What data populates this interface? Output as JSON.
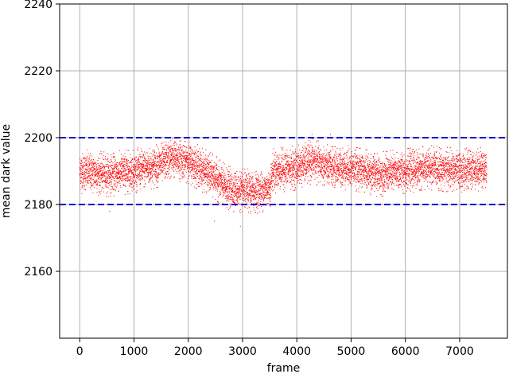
{
  "chart_data": {
    "type": "scatter",
    "title": "",
    "xlabel": "frame",
    "ylabel": "mean dark value",
    "xlim": [
      -370,
      7880
    ],
    "ylim": [
      2140,
      2240
    ],
    "xticks": [
      0,
      1000,
      2000,
      3000,
      4000,
      5000,
      6000,
      7000
    ],
    "xtick_labels": [
      "0",
      "1000",
      "2000",
      "3000",
      "4000",
      "5000",
      "6000",
      "7000"
    ],
    "yticks": [
      2160,
      2180,
      2200,
      2220,
      2240
    ],
    "ytick_labels": [
      "2160",
      "2180",
      "2200",
      "2220",
      "2240"
    ],
    "grid": true,
    "point_color": "#ff0000",
    "threshold_color": "#0000cc",
    "thresholds": [
      {
        "y": 2180,
        "style": "dashed"
      },
      {
        "y": 2200,
        "style": "dashed"
      }
    ],
    "series": [
      {
        "x_range": [
          0,
          7500
        ],
        "num_points": 7500,
        "trend": [
          {
            "x": 0,
            "y": 2190
          },
          {
            "x": 500,
            "y": 2189
          },
          {
            "x": 1000,
            "y": 2190
          },
          {
            "x": 1500,
            "y": 2192
          },
          {
            "x": 1700,
            "y": 2194
          },
          {
            "x": 2000,
            "y": 2193
          },
          {
            "x": 2300,
            "y": 2190
          },
          {
            "x": 2500,
            "y": 2188
          },
          {
            "x": 2700,
            "y": 2185
          },
          {
            "x": 3000,
            "y": 2184
          },
          {
            "x": 3300,
            "y": 2184
          },
          {
            "x": 3500,
            "y": 2185
          },
          {
            "x": 3560,
            "y": 2190
          },
          {
            "x": 4000,
            "y": 2191
          },
          {
            "x": 4300,
            "y": 2193
          },
          {
            "x": 4600,
            "y": 2191
          },
          {
            "x": 5000,
            "y": 2191
          },
          {
            "x": 5500,
            "y": 2189
          },
          {
            "x": 6000,
            "y": 2190
          },
          {
            "x": 6500,
            "y": 2191
          },
          {
            "x": 7000,
            "y": 2190
          },
          {
            "x": 7500,
            "y": 2191
          }
        ],
        "spread": 3.5,
        "outliers": [
          {
            "x": 2480,
            "y": 2175
          },
          {
            "x": 2960,
            "y": 2173.5
          },
          {
            "x": 3150,
            "y": 2178
          },
          {
            "x": 550,
            "y": 2178
          },
          {
            "x": 4280,
            "y": 2201
          },
          {
            "x": 4620,
            "y": 2201
          }
        ]
      }
    ]
  }
}
